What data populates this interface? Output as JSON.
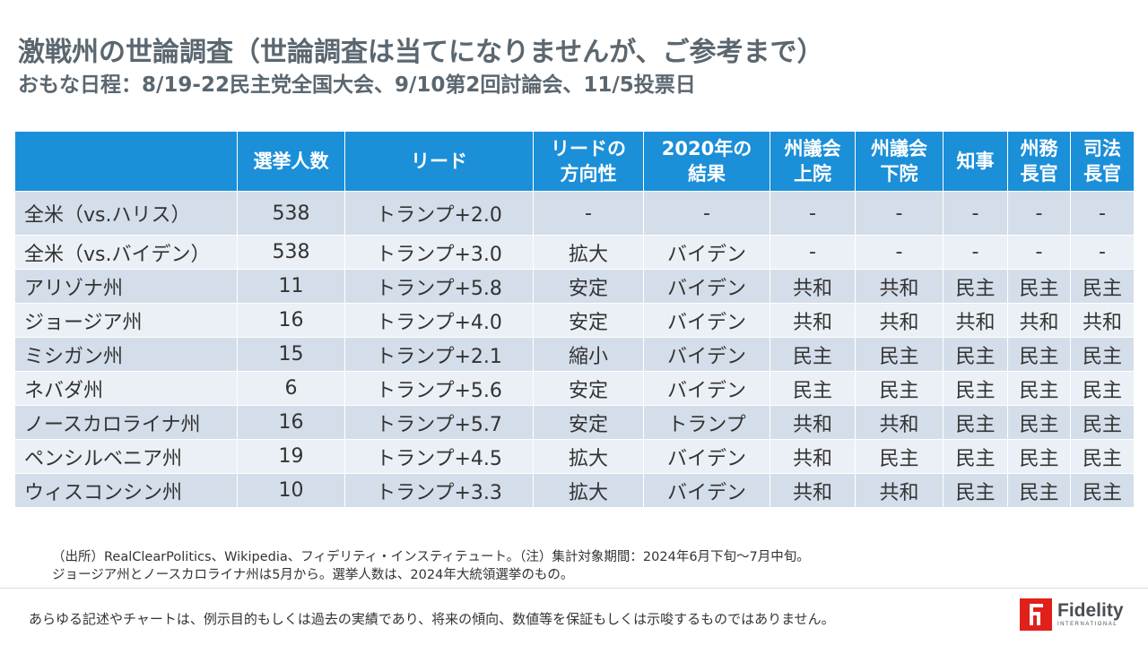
{
  "header": {
    "title": "激戦州の世論調査（世論調査は当てになりませんが、ご参考まで）",
    "subtitle": "おもな日程：8/19-22民主党全国大会、9/10第2回討論会、11/5投票日"
  },
  "table": {
    "columns": [
      "",
      "選挙人数",
      "リード",
      "リードの\n方向性",
      "2020年の\n結果",
      "州議会\n上院",
      "州議会\n下院",
      "知事",
      "州務\n長官",
      "司法\n長官"
    ],
    "rows": [
      {
        "state": "全米（vs.ハリス）",
        "electors": "538",
        "lead": "トランプ+2.0",
        "direction": "-",
        "result2020": "-",
        "senate": "-",
        "house": "-",
        "governor": "-",
        "secretary": "-",
        "attorney": "-"
      },
      {
        "state": "全米（vs.バイデン）",
        "electors": "538",
        "lead": "トランプ+3.0",
        "direction": "拡大",
        "result2020": "バイデン",
        "senate": "-",
        "house": "-",
        "governor": "-",
        "secretary": "-",
        "attorney": "-"
      },
      {
        "state": "アリゾナ州",
        "electors": "11",
        "lead": "トランプ+5.8",
        "direction": "安定",
        "result2020": "バイデン",
        "senate": "共和",
        "house": "共和",
        "governor": "民主",
        "secretary": "民主",
        "attorney": "民主"
      },
      {
        "state": "ジョージア州",
        "electors": "16",
        "lead": "トランプ+4.0",
        "direction": "安定",
        "result2020": "バイデン",
        "senate": "共和",
        "house": "共和",
        "governor": "共和",
        "secretary": "共和",
        "attorney": "共和"
      },
      {
        "state": "ミシガン州",
        "electors": "15",
        "lead": "トランプ+2.1",
        "direction": "縮小",
        "result2020": "バイデン",
        "senate": "民主",
        "house": "民主",
        "governor": "民主",
        "secretary": "民主",
        "attorney": "民主"
      },
      {
        "state": "ネバダ州",
        "electors": "6",
        "lead": "トランプ+5.6",
        "direction": "安定",
        "result2020": "バイデン",
        "senate": "民主",
        "house": "民主",
        "governor": "民主",
        "secretary": "民主",
        "attorney": "民主"
      },
      {
        "state": "ノースカロライナ州",
        "electors": "16",
        "lead": "トランプ+5.7",
        "direction": "安定",
        "result2020": "トランプ",
        "senate": "共和",
        "house": "共和",
        "governor": "民主",
        "secretary": "民主",
        "attorney": "民主"
      },
      {
        "state": "ペンシルベニア州",
        "electors": "19",
        "lead": "トランプ+4.5",
        "direction": "拡大",
        "result2020": "バイデン",
        "senate": "共和",
        "house": "民主",
        "governor": "民主",
        "secretary": "民主",
        "attorney": "民主"
      },
      {
        "state": "ウィスコンシン州",
        "electors": "10",
        "lead": "トランプ+3.3",
        "direction": "拡大",
        "result2020": "バイデン",
        "senate": "共和",
        "house": "共和",
        "governor": "民主",
        "secretary": "民主",
        "attorney": "民主"
      }
    ]
  },
  "colors": {
    "header_bg": "#1b8fd8",
    "republican": "#e0201b",
    "democrat": "#1b8fd8",
    "row_dark": "#d4deea",
    "row_light": "#ebf0f6",
    "title": "#5b6770"
  },
  "footnote": {
    "line1": "（出所）RealClearPolitics、Wikipedia、フィデリティ・インスティテュート。（注）集計対象期間：2024年6月下旬～7月中旬。",
    "line2": "ジョージア州とノースカロライナ州は5月から。選挙人数は、2024年大統領選挙のもの。"
  },
  "disclaimer": "あらゆる記述やチャートは、例示目的もしくは過去の実績であり、将来の傾向、数値等を保証もしくは示唆するものではありません。",
  "logo": {
    "icon": "fidelity-logo-icon",
    "name": "Fidelity",
    "sub": "INTERNATIONAL"
  }
}
